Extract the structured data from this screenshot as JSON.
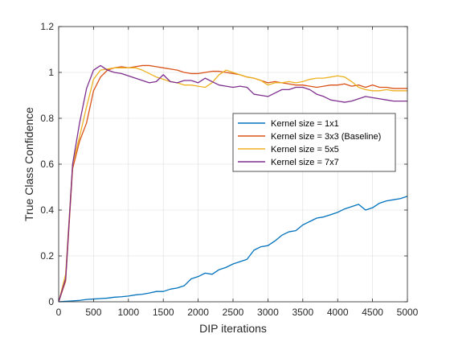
{
  "chart_data": {
    "type": "line",
    "title": "",
    "xlabel": "DIP iterations",
    "ylabel": "True Class Confidence",
    "xlim": [
      0,
      5000
    ],
    "ylim": [
      0,
      1.2
    ],
    "xticks": [
      0,
      500,
      1000,
      1500,
      2000,
      2500,
      3000,
      3500,
      4000,
      4500,
      5000
    ],
    "yticks": [
      0,
      0.2,
      0.4,
      0.6,
      0.8,
      1,
      1.2
    ],
    "grid": true,
    "legend_position": "right",
    "series": [
      {
        "name": "Kernel size = 1x1",
        "color": "#0072BD",
        "x": [
          0,
          100,
          200,
          300,
          400,
          500,
          600,
          700,
          800,
          900,
          1000,
          1100,
          1200,
          1300,
          1400,
          1500,
          1600,
          1700,
          1800,
          1900,
          2000,
          2100,
          2200,
          2300,
          2400,
          2500,
          2600,
          2700,
          2800,
          2900,
          3000,
          3100,
          3200,
          3300,
          3400,
          3500,
          3600,
          3700,
          3800,
          3900,
          4000,
          4100,
          4200,
          4300,
          4400,
          4500,
          4600,
          4700,
          4800,
          4900,
          5000
        ],
        "values": [
          0.0,
          0.002,
          0.004,
          0.006,
          0.01,
          0.012,
          0.014,
          0.016,
          0.02,
          0.022,
          0.025,
          0.03,
          0.033,
          0.038,
          0.045,
          0.045,
          0.055,
          0.06,
          0.07,
          0.1,
          0.11,
          0.125,
          0.12,
          0.14,
          0.15,
          0.165,
          0.175,
          0.185,
          0.225,
          0.24,
          0.245,
          0.265,
          0.29,
          0.305,
          0.31,
          0.335,
          0.35,
          0.365,
          0.37,
          0.38,
          0.39,
          0.405,
          0.415,
          0.425,
          0.4,
          0.41,
          0.43,
          0.44,
          0.445,
          0.45,
          0.46
        ]
      },
      {
        "name": "Kernel size = 3x3 (Baseline)",
        "color": "#D95319",
        "x": [
          0,
          100,
          200,
          300,
          400,
          500,
          600,
          700,
          800,
          900,
          1000,
          1100,
          1200,
          1300,
          1400,
          1500,
          1600,
          1700,
          1800,
          1900,
          2000,
          2100,
          2200,
          2300,
          2400,
          2500,
          2600,
          2700,
          2800,
          2900,
          3000,
          3100,
          3200,
          3300,
          3400,
          3500,
          3600,
          3700,
          3800,
          3900,
          4000,
          4100,
          4200,
          4300,
          4400,
          4500,
          4600,
          4700,
          4800,
          4900,
          5000
        ],
        "values": [
          0.0,
          0.09,
          0.58,
          0.7,
          0.78,
          0.92,
          0.98,
          1.01,
          1.02,
          1.025,
          1.02,
          1.025,
          1.03,
          1.03,
          1.025,
          1.02,
          1.015,
          1.01,
          1.0,
          0.995,
          0.995,
          1.0,
          1.005,
          1.005,
          1.0,
          0.995,
          0.99,
          0.98,
          0.975,
          0.965,
          0.955,
          0.96,
          0.955,
          0.95,
          0.945,
          0.945,
          0.94,
          0.935,
          0.94,
          0.945,
          0.945,
          0.95,
          0.94,
          0.945,
          0.935,
          0.945,
          0.935,
          0.935,
          0.93,
          0.93,
          0.93
        ]
      },
      {
        "name": "Kernel size = 5x5",
        "color": "#EDB120",
        "x": [
          0,
          100,
          200,
          300,
          400,
          500,
          600,
          700,
          800,
          900,
          1000,
          1100,
          1200,
          1300,
          1400,
          1500,
          1600,
          1700,
          1800,
          1900,
          2000,
          2100,
          2200,
          2300,
          2400,
          2500,
          2600,
          2700,
          2800,
          2900,
          3000,
          3100,
          3200,
          3300,
          3400,
          3500,
          3600,
          3700,
          3800,
          3900,
          4000,
          4100,
          4200,
          4300,
          4400,
          4500,
          4600,
          4700,
          4800,
          4900,
          5000
        ],
        "values": [
          0.0,
          0.12,
          0.6,
          0.72,
          0.85,
          0.97,
          1.01,
          1.015,
          1.02,
          1.02,
          1.02,
          1.02,
          1.01,
          0.995,
          0.98,
          0.97,
          0.96,
          0.955,
          0.945,
          0.945,
          0.94,
          0.935,
          0.955,
          0.99,
          1.01,
          1.0,
          0.99,
          0.98,
          0.975,
          0.965,
          0.945,
          0.955,
          0.955,
          0.96,
          0.955,
          0.96,
          0.97,
          0.975,
          0.975,
          0.98,
          0.985,
          0.98,
          0.96,
          0.935,
          0.925,
          0.92,
          0.92,
          0.925,
          0.92,
          0.92,
          0.92
        ]
      },
      {
        "name": "Kernel size = 7x7",
        "color": "#7E2F8E",
        "x": [
          0,
          100,
          200,
          300,
          400,
          500,
          600,
          700,
          800,
          900,
          1000,
          1100,
          1200,
          1300,
          1400,
          1500,
          1600,
          1700,
          1800,
          1900,
          2000,
          2100,
          2200,
          2300,
          2400,
          2500,
          2600,
          2700,
          2800,
          2900,
          3000,
          3100,
          3200,
          3300,
          3400,
          3500,
          3600,
          3700,
          3800,
          3900,
          4000,
          4100,
          4200,
          4300,
          4400,
          4500,
          4600,
          4700,
          4800,
          4900,
          5000
        ],
        "values": [
          0.0,
          0.1,
          0.6,
          0.78,
          0.93,
          1.01,
          1.03,
          1.01,
          1.0,
          0.995,
          0.985,
          0.975,
          0.965,
          0.955,
          0.96,
          0.99,
          0.96,
          0.955,
          0.965,
          0.965,
          0.955,
          0.975,
          0.96,
          0.945,
          0.94,
          0.935,
          0.94,
          0.935,
          0.905,
          0.9,
          0.895,
          0.91,
          0.925,
          0.925,
          0.935,
          0.935,
          0.925,
          0.905,
          0.895,
          0.88,
          0.875,
          0.87,
          0.875,
          0.885,
          0.895,
          0.89,
          0.885,
          0.88,
          0.875,
          0.875,
          0.875
        ]
      }
    ]
  }
}
